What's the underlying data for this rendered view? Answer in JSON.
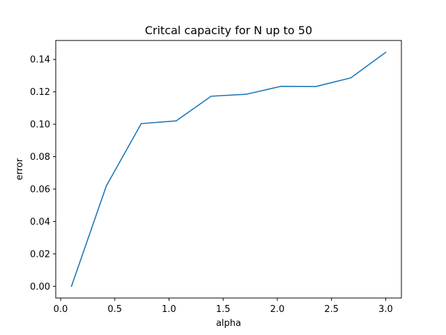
{
  "chart_data": {
    "type": "line",
    "title": "Critcal capacity for N up to 50",
    "xlabel": "alpha",
    "ylabel": "error",
    "xlim": [
      -0.045,
      3.145
    ],
    "ylim": [
      -0.0072,
      0.1517
    ],
    "xticks": [
      0.0,
      0.5,
      1.0,
      1.5,
      2.0,
      2.5,
      3.0
    ],
    "xtick_labels": [
      "0.0",
      "0.5",
      "1.0",
      "1.5",
      "2.0",
      "2.5",
      "3.0"
    ],
    "yticks": [
      0.0,
      0.02,
      0.04,
      0.06,
      0.08,
      0.1,
      0.12,
      0.14
    ],
    "ytick_labels": [
      "0.00",
      "0.02",
      "0.04",
      "0.06",
      "0.08",
      "0.10",
      "0.12",
      "0.14"
    ],
    "grid": false,
    "line_color": "#1f77b4",
    "series": [
      {
        "x": [
          0.1,
          0.422,
          0.744,
          1.067,
          1.389,
          1.711,
          2.033,
          2.356,
          2.678,
          3.0
        ],
        "values": [
          0.0,
          0.062,
          0.1004,
          0.1021,
          0.1173,
          0.1185,
          0.1234,
          0.1233,
          0.1286,
          0.1444
        ]
      }
    ]
  }
}
